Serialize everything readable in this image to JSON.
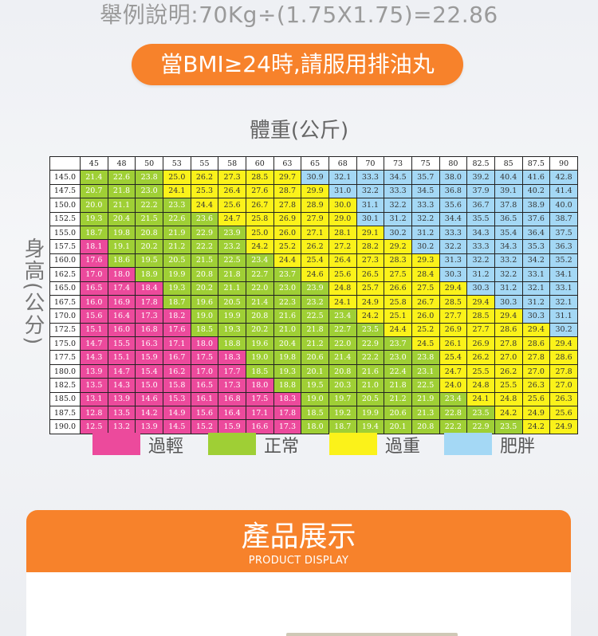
{
  "example_text": "舉例說明:70Kg÷(1.75X1.75)=22.86",
  "pill_text": "當BMI≥24時,請服用排油丸",
  "weight_label": "體重(公斤)",
  "height_label": "身高(公分)",
  "colors": {
    "pink": "#ec4a9c",
    "green": "#9fcf35",
    "yellow": "#fbf21a",
    "blue": "#a4d8f5",
    "orange": "#f7822b"
  },
  "legend": [
    {
      "label": "過輕",
      "color": "#ec4a9c"
    },
    {
      "label": "正常",
      "color": "#9fcf35"
    },
    {
      "label": "過重",
      "color": "#fbf21a"
    },
    {
      "label": "肥胖",
      "color": "#a4d8f5"
    }
  ],
  "weights": [
    "45",
    "48",
    "50",
    "53",
    "55",
    "58",
    "60",
    "63",
    "65",
    "68",
    "70",
    "73",
    "75",
    "80",
    "82.5",
    "85",
    "87.5",
    "90"
  ],
  "rows": [
    {
      "h": "145.0",
      "v": [
        "21.4",
        "22.6",
        "23.8",
        "25.0",
        "26.2",
        "27.3",
        "28.5",
        "29.7",
        "30.9",
        "32.1",
        "33.3",
        "34.5",
        "35.7",
        "38.0",
        "39.2",
        "40.4",
        "41.6",
        "42.8"
      ],
      "c": [
        2,
        2,
        2,
        3,
        3,
        3,
        3,
        3,
        4,
        4,
        4,
        4,
        4,
        4,
        4,
        4,
        4,
        4
      ]
    },
    {
      "h": "147.5",
      "v": [
        "20.7",
        "21.8",
        "23.0",
        "24.1",
        "25.3",
        "26.4",
        "27.6",
        "28.7",
        "29.9",
        "31.0",
        "32.2",
        "33.3",
        "34.5",
        "36.8",
        "37.9",
        "39.1",
        "40.2",
        "41.4"
      ],
      "c": [
        2,
        2,
        2,
        3,
        3,
        3,
        3,
        3,
        3,
        4,
        4,
        4,
        4,
        4,
        4,
        4,
        4,
        4
      ]
    },
    {
      "h": "150.0",
      "v": [
        "20.0",
        "21.1",
        "22.2",
        "23.3",
        "24.4",
        "25.6",
        "26.7",
        "27.8",
        "28.9",
        "30.0",
        "31.1",
        "32.2",
        "33.3",
        "35.6",
        "36.7",
        "37.8",
        "38.9",
        "40.0"
      ],
      "c": [
        2,
        2,
        2,
        2,
        3,
        3,
        3,
        3,
        3,
        3,
        4,
        4,
        4,
        4,
        4,
        4,
        4,
        4
      ]
    },
    {
      "h": "152.5",
      "v": [
        "19.3",
        "20.4",
        "21.5",
        "22.6",
        "23.6",
        "24.7",
        "25.8",
        "26.9",
        "27.9",
        "29.0",
        "30.1",
        "31.2",
        "32.2",
        "34.4",
        "35.5",
        "36.5",
        "37.6",
        "38.7"
      ],
      "c": [
        2,
        2,
        2,
        2,
        2,
        3,
        3,
        3,
        3,
        3,
        4,
        4,
        4,
        4,
        4,
        4,
        4,
        4
      ]
    },
    {
      "h": "155.0",
      "v": [
        "18.7",
        "19.8",
        "20.8",
        "21.9",
        "22.9",
        "23.9",
        "25.0",
        "26.0",
        "27.1",
        "28.1",
        "29.1",
        "30.2",
        "31.2",
        "33.3",
        "34.3",
        "35.4",
        "36.4",
        "37.5"
      ],
      "c": [
        2,
        2,
        2,
        2,
        2,
        2,
        3,
        3,
        3,
        3,
        3,
        4,
        4,
        4,
        4,
        4,
        4,
        4
      ]
    },
    {
      "h": "157.5",
      "v": [
        "18.1",
        "19.1",
        "20.2",
        "21.2",
        "22.2",
        "23.2",
        "24.2",
        "25.2",
        "26.2",
        "27.2",
        "28.2",
        "29.2",
        "30.2",
        "32.2",
        "33.3",
        "34.3",
        "35.3",
        "36.3"
      ],
      "c": [
        1,
        2,
        2,
        2,
        2,
        2,
        3,
        3,
        3,
        3,
        3,
        3,
        4,
        4,
        4,
        4,
        4,
        4
      ]
    },
    {
      "h": "160.0",
      "v": [
        "17.6",
        "18.6",
        "19.5",
        "20.5",
        "21.5",
        "22.5",
        "23.4",
        "24.4",
        "25.4",
        "26.4",
        "27.3",
        "28.3",
        "29.3",
        "31.3",
        "32.2",
        "33.2",
        "34.2",
        "35.2"
      ],
      "c": [
        1,
        2,
        2,
        2,
        2,
        2,
        2,
        3,
        3,
        3,
        3,
        3,
        3,
        4,
        4,
        4,
        4,
        4
      ]
    },
    {
      "h": "162.5",
      "v": [
        "17.0",
        "18.0",
        "18.9",
        "19.9",
        "20.8",
        "21.8",
        "22.7",
        "23.7",
        "24.6",
        "25.6",
        "26.5",
        "27.5",
        "28.4",
        "30.3",
        "31.2",
        "32.2",
        "33.1",
        "34.1"
      ],
      "c": [
        1,
        1,
        2,
        2,
        2,
        2,
        2,
        2,
        3,
        3,
        3,
        3,
        3,
        4,
        4,
        4,
        4,
        4
      ]
    },
    {
      "h": "165.0",
      "v": [
        "16.5",
        "17.4",
        "18.4",
        "19.3",
        "20.2",
        "21.1",
        "22.0",
        "23.0",
        "23.9",
        "24.8",
        "25.7",
        "26.6",
        "27.5",
        "29.4",
        "30.3",
        "31.2",
        "32.1",
        "33.1"
      ],
      "c": [
        1,
        1,
        1,
        2,
        2,
        2,
        2,
        2,
        2,
        3,
        3,
        3,
        3,
        3,
        4,
        4,
        4,
        4
      ]
    },
    {
      "h": "167.5",
      "v": [
        "16.0",
        "16.9",
        "17.8",
        "18.7",
        "19.6",
        "20.5",
        "21.4",
        "22.3",
        "23.2",
        "24.1",
        "24.9",
        "25.8",
        "26.7",
        "28.5",
        "29.4",
        "30.3",
        "31.2",
        "32.1"
      ],
      "c": [
        1,
        1,
        1,
        2,
        2,
        2,
        2,
        2,
        2,
        3,
        3,
        3,
        3,
        3,
        3,
        4,
        4,
        4
      ]
    },
    {
      "h": "170.0",
      "v": [
        "15.6",
        "16.4",
        "17.3",
        "18.2",
        "19.0",
        "19.9",
        "20.8",
        "21.6",
        "22.5",
        "23.4",
        "24.2",
        "25.1",
        "26.0",
        "27.7",
        "28.5",
        "29.4",
        "30.3",
        "31.1"
      ],
      "c": [
        1,
        1,
        1,
        1,
        2,
        2,
        2,
        2,
        2,
        2,
        3,
        3,
        3,
        3,
        3,
        3,
        4,
        4
      ]
    },
    {
      "h": "172.5",
      "v": [
        "15.1",
        "16.0",
        "16.8",
        "17.6",
        "18.5",
        "19.3",
        "20.2",
        "21.0",
        "21.8",
        "22.7",
        "23.5",
        "24.4",
        "25.2",
        "26.9",
        "27.7",
        "28.6",
        "29.4",
        "30.2"
      ],
      "c": [
        1,
        1,
        1,
        1,
        2,
        2,
        2,
        2,
        2,
        2,
        2,
        3,
        3,
        3,
        3,
        3,
        3,
        4
      ]
    },
    {
      "h": "175.0",
      "v": [
        "14.7",
        "15.5",
        "16.3",
        "17.1",
        "18.0",
        "18.8",
        "19.6",
        "20.4",
        "21.2",
        "22.0",
        "22.9",
        "23.7",
        "24.5",
        "26.1",
        "26.9",
        "27.8",
        "28.6",
        "29.4"
      ],
      "c": [
        1,
        1,
        1,
        1,
        1,
        2,
        2,
        2,
        2,
        2,
        2,
        2,
        3,
        3,
        3,
        3,
        3,
        3
      ]
    },
    {
      "h": "177.5",
      "v": [
        "14.3",
        "15.1",
        "15.9",
        "16.7",
        "17.5",
        "18.3",
        "19.0",
        "19.8",
        "20.6",
        "21.4",
        "22.2",
        "23.0",
        "23.8",
        "25.4",
        "26.2",
        "27.0",
        "27.8",
        "28.6"
      ],
      "c": [
        1,
        1,
        1,
        1,
        1,
        1,
        2,
        2,
        2,
        2,
        2,
        2,
        2,
        3,
        3,
        3,
        3,
        3
      ]
    },
    {
      "h": "180.0",
      "v": [
        "13.9",
        "14.7",
        "15.4",
        "16.2",
        "17.0",
        "17.7",
        "18.5",
        "19.3",
        "20.1",
        "20.8",
        "21.6",
        "22.4",
        "23.1",
        "24.7",
        "25.5",
        "26.2",
        "27.0",
        "27.8"
      ],
      "c": [
        1,
        1,
        1,
        1,
        1,
        1,
        2,
        2,
        2,
        2,
        2,
        2,
        2,
        3,
        3,
        3,
        3,
        3
      ]
    },
    {
      "h": "182.5",
      "v": [
        "13.5",
        "14.3",
        "15.0",
        "15.8",
        "16.5",
        "17.3",
        "18.0",
        "18.8",
        "19.5",
        "20.3",
        "21.0",
        "21.8",
        "22.5",
        "24.0",
        "24.8",
        "25.5",
        "26.3",
        "27.0"
      ],
      "c": [
        1,
        1,
        1,
        1,
        1,
        1,
        1,
        2,
        2,
        2,
        2,
        2,
        2,
        3,
        3,
        3,
        3,
        3
      ]
    },
    {
      "h": "185.0",
      "v": [
        "13.1",
        "13.9",
        "14.6",
        "15.3",
        "16.1",
        "16.8",
        "17.5",
        "18.3",
        "19.0",
        "19.7",
        "20.5",
        "21.2",
        "21.9",
        "23.4",
        "24.1",
        "24.8",
        "25.6",
        "26.3"
      ],
      "c": [
        1,
        1,
        1,
        1,
        1,
        1,
        1,
        1,
        2,
        2,
        2,
        2,
        2,
        2,
        3,
        3,
        3,
        3
      ]
    },
    {
      "h": "187.5",
      "v": [
        "12.8",
        "13.5",
        "14.2",
        "14.9",
        "15.6",
        "16.4",
        "17.1",
        "17.8",
        "18.5",
        "19.2",
        "19.9",
        "20.6",
        "21.3",
        "22.8",
        "23.5",
        "24.2",
        "24.9",
        "25.6"
      ],
      "c": [
        1,
        1,
        1,
        1,
        1,
        1,
        1,
        1,
        2,
        2,
        2,
        2,
        2,
        2,
        2,
        3,
        3,
        3
      ]
    },
    {
      "h": "190.0",
      "v": [
        "12.5",
        "13.2",
        "13.9",
        "14.5",
        "15.2",
        "15.9",
        "16.6",
        "17.3",
        "18.0",
        "18.7",
        "19.4",
        "20.1",
        "20.8",
        "22.2",
        "22.9",
        "23.5",
        "24.2",
        "24.9"
      ],
      "c": [
        1,
        1,
        1,
        1,
        1,
        1,
        1,
        1,
        2,
        2,
        2,
        2,
        2,
        2,
        2,
        2,
        3,
        3
      ]
    }
  ],
  "banner_title": "產品展示",
  "banner_subtitle": "PRODUCT DISPLAY"
}
